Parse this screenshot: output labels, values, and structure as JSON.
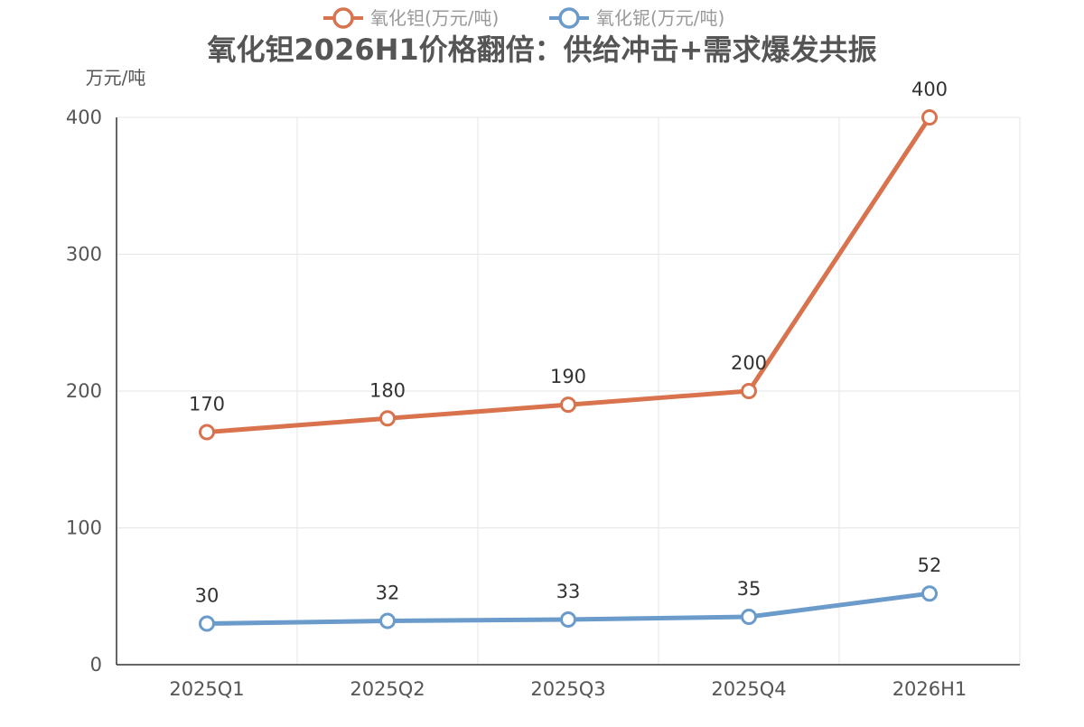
{
  "chart_data": {
    "type": "line",
    "title": "氧化钽2026H1价格翻倍：供给冲击+需求爆发共振",
    "ylabel": "万元/吨",
    "xlabel": "",
    "categories": [
      "2025Q1",
      "2025Q2",
      "2025Q3",
      "2025Q4",
      "2026H1"
    ],
    "ylim": [
      0,
      400
    ],
    "yticks": [
      0,
      100,
      200,
      300,
      400
    ],
    "grid": true,
    "legend_position": "top-center",
    "series": [
      {
        "name": "氧化钽(万元/吨)",
        "values": [
          170,
          180,
          190,
          200,
          400
        ],
        "color": "#d9734e"
      },
      {
        "name": "氧化铌(万元/吨)",
        "values": [
          30,
          32,
          33,
          35,
          52
        ],
        "color": "#6b9bcb"
      }
    ]
  }
}
